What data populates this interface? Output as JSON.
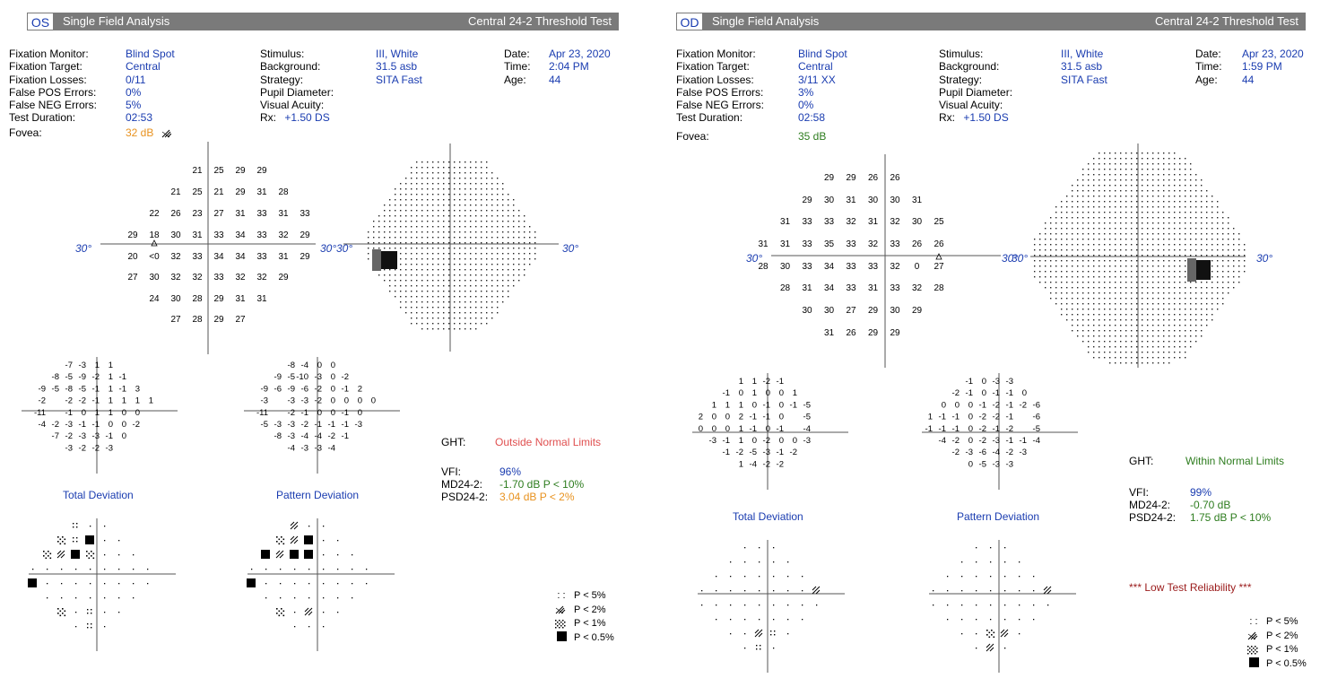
{
  "colors": {
    "header_bg": "#7a7a7a",
    "value_blue": "#1a3cb0",
    "fovea_orange": "#e8921f",
    "fovea_green": "#2e7d1f",
    "ght_outside": "#e05050",
    "reliability_red": "#9a1a1a"
  },
  "left": {
    "eye": "OS",
    "title": "Single Field Analysis",
    "test": "Central 24-2 Threshold Test",
    "col1_labels": [
      "Fixation Monitor:",
      "Fixation Target:",
      "Fixation Losses:",
      "False POS Errors:",
      "False NEG Errors:",
      "Test Duration:"
    ],
    "col1_values": [
      "Blind Spot",
      "Central",
      "0/11",
      "0%",
      "5%",
      "02:53"
    ],
    "col2_labels": [
      "Stimulus:",
      "Background:",
      "Strategy:",
      "Pupil Diameter:",
      "Visual Acuity:",
      "Rx:"
    ],
    "col2_values": [
      "III, White",
      "31.5 asb",
      "SITA Fast",
      "",
      "",
      "+1.50 DS"
    ],
    "col3_labels": [
      "Date:",
      "Time:",
      "Age:"
    ],
    "col3_values": [
      "Apr 23, 2020",
      "2:04 PM",
      "44"
    ],
    "fovea_label": "Fovea:",
    "fovea_value": "32 dB",
    "axis_label": "30°",
    "total_dev_caption": "Total Deviation",
    "pattern_dev_caption": "Pattern Deviation",
    "ght_label": "GHT:",
    "ght_value": "Outside Normal Limits",
    "vfi_label": "VFI:",
    "vfi_value": "96%",
    "md_label": "MD24-2:",
    "md_value": "-1.70 dB P < 10%",
    "psd_label": "PSD24-2:",
    "psd_value": "3.04 dB P < 2%",
    "threshold_rows": [
      {
        "y": 193,
        "cells": [
          [
            4,
            "21"
          ],
          [
            5,
            "25"
          ],
          [
            6,
            "29"
          ],
          [
            7,
            "29"
          ]
        ]
      },
      {
        "y": 217,
        "cells": [
          [
            3,
            "21"
          ],
          [
            4,
            "25"
          ],
          [
            5,
            "21"
          ],
          [
            6,
            "29"
          ],
          [
            7,
            "31"
          ],
          [
            8,
            "28"
          ]
        ]
      },
      {
        "y": 241,
        "cells": [
          [
            2,
            "22"
          ],
          [
            3,
            "26"
          ],
          [
            4,
            "23"
          ],
          [
            5,
            "27"
          ],
          [
            6,
            "31"
          ],
          [
            7,
            "33"
          ],
          [
            8,
            "31"
          ],
          [
            9,
            "33"
          ]
        ]
      },
      {
        "y": 265,
        "cells": [
          [
            1,
            "29"
          ],
          [
            2,
            "18"
          ],
          [
            3,
            "30"
          ],
          [
            4,
            "31"
          ],
          [
            5,
            "33"
          ],
          [
            6,
            "34"
          ],
          [
            7,
            "33"
          ],
          [
            8,
            "32"
          ],
          [
            9,
            "29"
          ]
        ]
      },
      {
        "y": 289,
        "cells": [
          [
            1,
            "20"
          ],
          [
            2,
            "<0"
          ],
          [
            3,
            "32"
          ],
          [
            4,
            "33"
          ],
          [
            5,
            "34"
          ],
          [
            6,
            "34"
          ],
          [
            7,
            "33"
          ],
          [
            8,
            "31"
          ],
          [
            9,
            "29"
          ]
        ]
      },
      {
        "y": 312,
        "cells": [
          [
            1,
            "27"
          ],
          [
            2,
            "30"
          ],
          [
            3,
            "32"
          ],
          [
            4,
            "32"
          ],
          [
            5,
            "33"
          ],
          [
            6,
            "32"
          ],
          [
            7,
            "32"
          ],
          [
            8,
            "29"
          ]
        ]
      },
      {
        "y": 336,
        "cells": [
          [
            2,
            "24"
          ],
          [
            3,
            "30"
          ],
          [
            4,
            "28"
          ],
          [
            5,
            "29"
          ],
          [
            6,
            "31"
          ],
          [
            7,
            "31"
          ]
        ]
      },
      {
        "y": 359,
        "cells": [
          [
            3,
            "27"
          ],
          [
            4,
            "28"
          ],
          [
            5,
            "29"
          ],
          [
            6,
            "27"
          ]
        ]
      }
    ],
    "td_rows": [
      [
        "",
        "",
        "",
        "-7",
        "-3",
        "1",
        "1",
        "",
        ""
      ],
      [
        "",
        "",
        "-8",
        "-5",
        "-9",
        "-2",
        "1",
        "-1",
        ""
      ],
      [
        "",
        "-9",
        "-5",
        "-8",
        "-5",
        "-1",
        "1",
        "-1",
        "3"
      ],
      [
        "",
        "-2",
        "",
        "-2",
        "-2",
        "-1",
        "1",
        "1",
        "1",
        "1"
      ],
      [
        "",
        "-11",
        "",
        "-1",
        "0",
        "1",
        "1",
        "0",
        "0"
      ],
      [
        "",
        "-4",
        "-2",
        "-3",
        "-1",
        "-1",
        "0",
        "0",
        "-2"
      ],
      [
        "",
        "",
        "-7",
        "-2",
        "-3",
        "-3",
        "-1",
        "0",
        ""
      ],
      [
        "",
        "",
        "",
        "-3",
        "-2",
        "-2",
        "-3",
        "",
        ""
      ]
    ],
    "pd_rows": [
      [
        "",
        "",
        "",
        "-8",
        "-4",
        "0",
        "0",
        "",
        ""
      ],
      [
        "",
        "",
        "-9",
        "-5",
        "-10",
        "-3",
        "0",
        "-2",
        ""
      ],
      [
        "",
        "-9",
        "-6",
        "-9",
        "-6",
        "-2",
        "0",
        "-1",
        "2"
      ],
      [
        "",
        "-3",
        "",
        "-3",
        "-3",
        "-2",
        "0",
        "0",
        "0",
        "0"
      ],
      [
        "",
        "-11",
        "",
        "-2",
        "-1",
        "0",
        "0",
        "-1",
        "0"
      ],
      [
        "",
        "-5",
        "-3",
        "-3",
        "-2",
        "-1",
        "-1",
        "-1",
        "-3"
      ],
      [
        "",
        "",
        "-8",
        "-3",
        "-4",
        "-4",
        "-2",
        "-1",
        ""
      ],
      [
        "",
        "",
        "",
        "-4",
        "-3",
        "-3",
        "-4",
        "",
        ""
      ]
    ],
    "legend": [
      "P < 5%",
      "P < 2%",
      "P < 1%",
      "P < 0.5%"
    ]
  },
  "right": {
    "eye": "OD",
    "title": "Single Field Analysis",
    "test": "Central 24-2 Threshold Test",
    "col1_labels": [
      "Fixation Monitor:",
      "Fixation Target:",
      "Fixation Losses:",
      "False POS Errors:",
      "False NEG Errors:",
      "Test Duration:"
    ],
    "col1_values": [
      "Blind Spot",
      "Central",
      "3/11 XX",
      "3%",
      "0%",
      "02:58"
    ],
    "col2_labels": [
      "Stimulus:",
      "Background:",
      "Strategy:",
      "Pupil Diameter:",
      "Visual Acuity:",
      "Rx:"
    ],
    "col2_values": [
      "III, White",
      "31.5 asb",
      "SITA Fast",
      "",
      "",
      "+1.50 DS"
    ],
    "col3_labels": [
      "Date:",
      "Time:",
      "Age:"
    ],
    "col3_values": [
      "Apr 23, 2020",
      "1:59 PM",
      "44"
    ],
    "fovea_label": "Fovea:",
    "fovea_value": "35 dB",
    "axis_label": "30°",
    "total_dev_caption": "Total Deviation",
    "pattern_dev_caption": "Pattern Deviation",
    "ght_label": "GHT:",
    "ght_value": "Within Normal Limits",
    "vfi_label": "VFI:",
    "vfi_value": "99%",
    "md_label": "MD24-2:",
    "md_value": "-0.70 dB",
    "psd_label": "PSD24-2:",
    "psd_value": "1.75 dB P < 10%",
    "reliability": "*** Low Test Reliability ***",
    "threshold_rows": [
      {
        "y": 201,
        "cells": [
          [
            3,
            "29"
          ],
          [
            4,
            "29"
          ],
          [
            5,
            "26"
          ],
          [
            6,
            "26"
          ]
        ]
      },
      {
        "y": 226,
        "cells": [
          [
            2,
            "29"
          ],
          [
            3,
            "30"
          ],
          [
            4,
            "31"
          ],
          [
            5,
            "30"
          ],
          [
            6,
            "30"
          ],
          [
            7,
            "31"
          ]
        ]
      },
      {
        "y": 250,
        "cells": [
          [
            1,
            "31"
          ],
          [
            2,
            "33"
          ],
          [
            3,
            "33"
          ],
          [
            4,
            "32"
          ],
          [
            5,
            "31"
          ],
          [
            6,
            "32"
          ],
          [
            7,
            "30"
          ],
          [
            8,
            "25"
          ]
        ]
      },
      {
        "y": 275,
        "cells": [
          [
            0,
            "31"
          ],
          [
            1,
            "31"
          ],
          [
            2,
            "33"
          ],
          [
            3,
            "35"
          ],
          [
            4,
            "33"
          ],
          [
            5,
            "32"
          ],
          [
            6,
            "33"
          ],
          [
            7,
            "26"
          ],
          [
            8,
            "26"
          ]
        ]
      },
      {
        "y": 300,
        "cells": [
          [
            0,
            "28"
          ],
          [
            1,
            "30"
          ],
          [
            2,
            "33"
          ],
          [
            3,
            "34"
          ],
          [
            4,
            "33"
          ],
          [
            5,
            "33"
          ],
          [
            6,
            "32"
          ],
          [
            7,
            "0"
          ],
          [
            8,
            "27"
          ]
        ]
      },
      {
        "y": 324,
        "cells": [
          [
            1,
            "28"
          ],
          [
            2,
            "31"
          ],
          [
            3,
            "34"
          ],
          [
            4,
            "33"
          ],
          [
            5,
            "31"
          ],
          [
            6,
            "33"
          ],
          [
            7,
            "32"
          ],
          [
            8,
            "28"
          ]
        ]
      },
      {
        "y": 349,
        "cells": [
          [
            2,
            "30"
          ],
          [
            3,
            "30"
          ],
          [
            4,
            "27"
          ],
          [
            5,
            "29"
          ],
          [
            6,
            "30"
          ],
          [
            7,
            "29"
          ]
        ]
      },
      {
        "y": 374,
        "cells": [
          [
            3,
            "31"
          ],
          [
            4,
            "26"
          ],
          [
            5,
            "29"
          ],
          [
            6,
            "29"
          ]
        ]
      }
    ],
    "td_rows": [
      [
        "",
        "",
        "",
        "1",
        "1",
        "-2",
        "-1",
        "",
        ""
      ],
      [
        "",
        "",
        "-1",
        "0",
        "1",
        "0",
        "0",
        "1",
        ""
      ],
      [
        "",
        "1",
        "1",
        "1",
        "0",
        "-1",
        "0",
        "-1",
        "-5"
      ],
      [
        "2",
        "0",
        "0",
        "2",
        "-1",
        "-1",
        "0",
        "",
        "-5"
      ],
      [
        "0",
        "0",
        "0",
        "1",
        "-1",
        "0",
        "-1",
        "",
        "-4"
      ],
      [
        "",
        "-3",
        "-1",
        "1",
        "0",
        "-2",
        "0",
        "0",
        "-3"
      ],
      [
        "",
        "",
        "-1",
        "-2",
        "-5",
        "-3",
        "-1",
        "-2",
        ""
      ],
      [
        "",
        "",
        "",
        "1",
        "-4",
        "-2",
        "-2",
        "",
        ""
      ]
    ],
    "pd_rows": [
      [
        "",
        "",
        "",
        "-1",
        "0",
        "-3",
        "-3",
        "",
        ""
      ],
      [
        "",
        "",
        "-2",
        "-1",
        "0",
        "-1",
        "-1",
        "0",
        ""
      ],
      [
        "",
        "0",
        "0",
        "0",
        "-1",
        "-2",
        "-1",
        "-2",
        "-6"
      ],
      [
        "1",
        "-1",
        "-1",
        "0",
        "-2",
        "-2",
        "-1",
        "",
        "-6"
      ],
      [
        "-1",
        "-1",
        "-1",
        "0",
        "-2",
        "-1",
        "-2",
        "",
        "-5"
      ],
      [
        "",
        "-4",
        "-2",
        "0",
        "-2",
        "-3",
        "-1",
        "-1",
        "-4"
      ],
      [
        "",
        "",
        "-2",
        "-3",
        "-6",
        "-4",
        "-2",
        "-3",
        ""
      ],
      [
        "",
        "",
        "",
        "0",
        "-5",
        "-3",
        "-3",
        "",
        ""
      ]
    ],
    "legend": [
      "P < 5%",
      "P < 2%",
      "P < 1%",
      "P < 0.5%"
    ]
  }
}
